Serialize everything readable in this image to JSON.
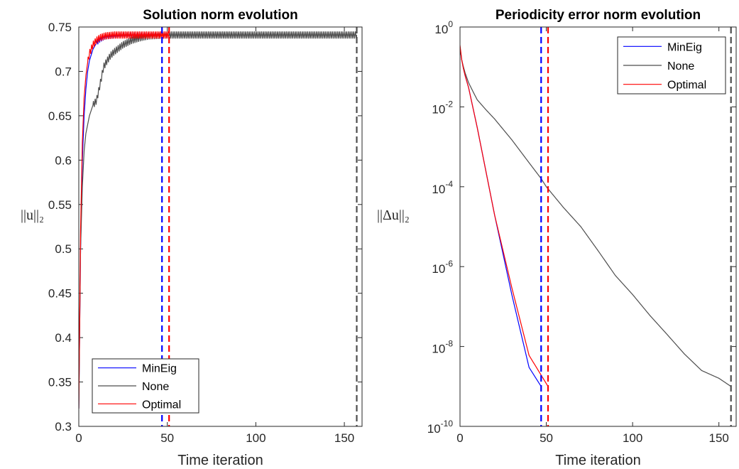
{
  "chart_data": [
    {
      "type": "line",
      "title": "Solution norm evolution",
      "xlabel": "Time iteration",
      "ylabel": "||u||₂",
      "xlim": [
        0,
        160
      ],
      "ylim": [
        0.3,
        0.75
      ],
      "y_scale": "linear",
      "xticks": [
        0,
        50,
        100,
        150
      ],
      "xtick_labels": [
        "0",
        "50",
        "100",
        "150"
      ],
      "yticks": [
        0.3,
        0.35,
        0.4,
        0.45,
        0.5,
        0.55,
        0.6,
        0.65,
        0.7,
        0.75
      ],
      "ytick_labels": [
        "0.3",
        "0.35",
        "0.4",
        "0.45",
        "0.5",
        "0.55",
        "0.6",
        "0.65",
        "0.7",
        "0.75"
      ],
      "legend_position": "bottom-left",
      "series": [
        {
          "name": "MinEig",
          "color": "#0000ff",
          "x": [
            0,
            1,
            2,
            3,
            4,
            5,
            6,
            8,
            10,
            12,
            15,
            20,
            25,
            30,
            40,
            47
          ],
          "y": [
            0.32,
            0.5,
            0.6,
            0.65,
            0.68,
            0.7,
            0.712,
            0.725,
            0.732,
            0.736,
            0.739,
            0.74,
            0.741,
            0.741,
            0.741,
            0.741
          ],
          "oscillation_amplitude": 0.003,
          "oscillation_from_x": 10
        },
        {
          "name": "None",
          "color": "#4d4d4d",
          "x": [
            0,
            1,
            2,
            3,
            4,
            5,
            6,
            7,
            8,
            10,
            12,
            14,
            16,
            18,
            20,
            25,
            30,
            35,
            40,
            50,
            60,
            80,
            100,
            120,
            140,
            157
          ],
          "y": [
            0.32,
            0.5,
            0.57,
            0.61,
            0.63,
            0.64,
            0.65,
            0.656,
            0.662,
            0.667,
            0.685,
            0.705,
            0.712,
            0.718,
            0.722,
            0.73,
            0.735,
            0.738,
            0.74,
            0.741,
            0.741,
            0.741,
            0.741,
            0.741,
            0.741,
            0.741
          ],
          "oscillation_amplitude": 0.004,
          "oscillation_from_x": 8
        },
        {
          "name": "Optimal",
          "color": "#ff0000",
          "x": [
            0,
            1,
            2,
            3,
            4,
            5,
            6,
            8,
            10,
            12,
            15,
            20,
            25,
            30,
            40,
            51
          ],
          "y": [
            0.32,
            0.52,
            0.62,
            0.67,
            0.695,
            0.71,
            0.72,
            0.73,
            0.735,
            0.738,
            0.74,
            0.741,
            0.741,
            0.741,
            0.741,
            0.741
          ],
          "oscillation_amplitude": 0.004,
          "oscillation_from_x": 5
        }
      ],
      "vertical_lines": [
        {
          "x": 47,
          "color": "#0000ff",
          "style": "dashed"
        },
        {
          "x": 51,
          "color": "#ff0000",
          "style": "dashed"
        },
        {
          "x": 157,
          "color": "#4d4d4d",
          "style": "dashed"
        }
      ]
    },
    {
      "type": "line",
      "title": "Periodicity error norm evolution",
      "xlabel": "Time iteration",
      "ylabel": "||Δu||₂",
      "xlim": [
        0,
        160
      ],
      "ylim": [
        1e-10,
        1
      ],
      "y_scale": "log",
      "xticks": [
        0,
        50,
        100,
        150
      ],
      "xtick_labels": [
        "0",
        "50",
        "100",
        "150"
      ],
      "yticks": [
        1e-10,
        1e-08,
        1e-06,
        0.0001,
        0.01,
        1
      ],
      "ytick_labels": [
        {
          "base": "10",
          "exp": "-10"
        },
        {
          "base": "10",
          "exp": "-8"
        },
        {
          "base": "10",
          "exp": "-6"
        },
        {
          "base": "10",
          "exp": "-4"
        },
        {
          "base": "10",
          "exp": "-2"
        },
        {
          "base": "10",
          "exp": "0"
        }
      ],
      "legend_position": "top-right",
      "series": [
        {
          "name": "MinEig",
          "color": "#0000ff",
          "x": [
            0,
            1,
            2,
            3,
            5,
            10,
            20,
            30,
            40,
            47
          ],
          "y": [
            0.3,
            0.15,
            0.09,
            0.06,
            0.03,
            0.003,
            2e-05,
            2e-07,
            3e-09,
            1e-09
          ]
        },
        {
          "name": "None",
          "color": "#4d4d4d",
          "x": [
            0,
            1,
            2,
            3,
            5,
            8,
            10,
            15,
            20,
            30,
            40,
            47,
            50,
            60,
            70,
            80,
            90,
            100,
            110,
            120,
            130,
            140,
            150,
            157
          ],
          "y": [
            0.3,
            0.15,
            0.1,
            0.07,
            0.04,
            0.022,
            0.015,
            0.0085,
            0.005,
            0.0015,
            0.0004,
            0.00016,
            0.0001,
            3e-05,
            1e-05,
            2.5e-06,
            6e-07,
            2e-07,
            6e-08,
            2e-08,
            6.5e-09,
            2.5e-09,
            1.6e-09,
            1e-09
          ]
        },
        {
          "name": "Optimal",
          "color": "#ff0000",
          "x": [
            0,
            1,
            2,
            3,
            5,
            10,
            20,
            30,
            40,
            51
          ],
          "y": [
            0.35,
            0.15,
            0.09,
            0.06,
            0.03,
            0.003,
            2e-05,
            3e-07,
            6e-09,
            1e-09
          ]
        }
      ],
      "vertical_lines": [
        {
          "x": 47,
          "color": "#0000ff",
          "style": "dashed"
        },
        {
          "x": 51,
          "color": "#ff0000",
          "style": "dashed"
        },
        {
          "x": 157,
          "color": "#4d4d4d",
          "style": "dashed"
        }
      ]
    }
  ]
}
